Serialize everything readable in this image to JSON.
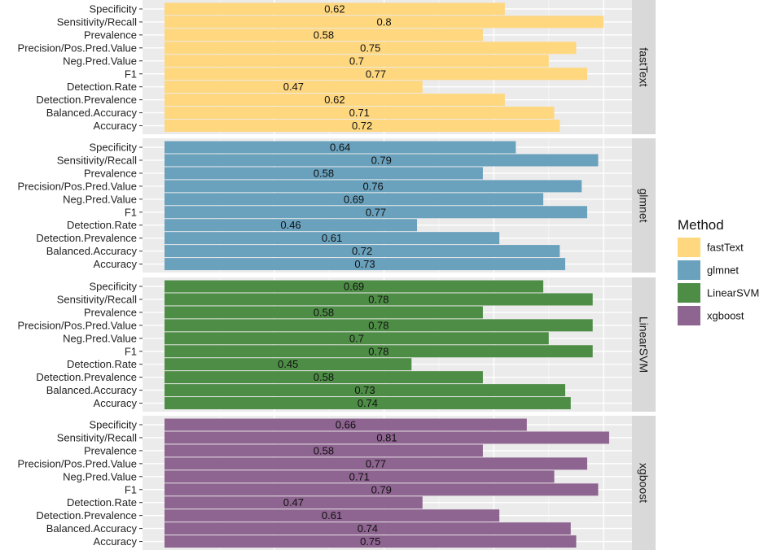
{
  "chart_data": {
    "type": "bar",
    "orientation": "horizontal",
    "facet_by": "Method",
    "categories": [
      "Specificity",
      "Sensitivity/Recall",
      "Prevalence",
      "Precision/Pos.Pred.Value",
      "Neg.Pred.Value",
      "F1",
      "Detection.Rate",
      "Detection.Prevalence",
      "Balanced.Accuracy",
      "Accuracy"
    ],
    "xlim": [
      0,
      0.85
    ],
    "grid": true,
    "legend": {
      "title": "Method",
      "position": "right"
    },
    "series": [
      {
        "name": "fastText",
        "color": "#FED77F",
        "values": [
          0.62,
          0.8,
          0.58,
          0.75,
          0.7,
          0.77,
          0.47,
          0.62,
          0.71,
          0.72
        ]
      },
      {
        "name": "glmnet",
        "color": "#6AA2BE",
        "values": [
          0.64,
          0.79,
          0.58,
          0.76,
          0.69,
          0.77,
          0.46,
          0.61,
          0.72,
          0.73
        ]
      },
      {
        "name": "LinearSVM",
        "color": "#4E8D46",
        "values": [
          0.69,
          0.78,
          0.58,
          0.78,
          0.7,
          0.78,
          0.45,
          0.58,
          0.73,
          0.74
        ]
      },
      {
        "name": "xgboost",
        "color": "#8E6490",
        "values": [
          0.66,
          0.81,
          0.58,
          0.77,
          0.71,
          0.79,
          0.47,
          0.61,
          0.74,
          0.75
        ]
      }
    ]
  }
}
